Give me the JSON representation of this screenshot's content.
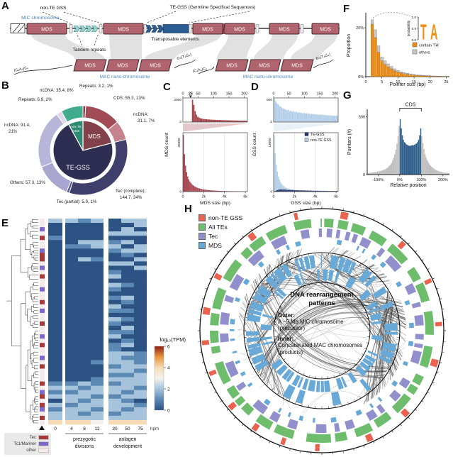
{
  "panels": {
    "A": {
      "letter": "A",
      "mic_label": "MIC chromosome",
      "non_te_label": "non-TE GSS",
      "te_label": "TE-GSS (Germline Specifical Sequences)",
      "tandem_label": "Tandem repeats",
      "transposable_label": "Transposable elements",
      "mac_label": "MAC nano-chromosome",
      "mds_label": "MDS",
      "telomere_left": "(C₄A₄)C₄",
      "telomere_right": "G₄(T₄G₄)",
      "colors": {
        "mds": "#b0646e",
        "mds_border": "#46262c",
        "tandem": "#93d2cd",
        "te": "#2b5f94",
        "funnel": "#dcdcdc",
        "blue_text": "#4a86c0"
      }
    },
    "B": {
      "letter": "B"
    },
    "C": {
      "letter": "C"
    },
    "D": {
      "letter": "D"
    },
    "E": {
      "letter": "E",
      "row_legend": [
        {
          "label": "Tec",
          "color": "#a63a3a"
        },
        {
          "label": "Tc1/Mariner",
          "color": "#7b68c8"
        },
        {
          "label": "other",
          "color": "#f4eaea"
        }
      ],
      "pointer_glyph": "▲"
    },
    "F": {
      "letter": "F"
    },
    "G": {
      "letter": "G"
    },
    "H": {
      "letter": "H",
      "legend": [
        {
          "label": "non-TE GSS",
          "color": "#e96350"
        },
        {
          "label": "All TEs",
          "color": "#6dbd6d"
        },
        {
          "label": "Tec",
          "color": "#928fcd"
        },
        {
          "label": "MDS",
          "color": "#64aad9"
        }
      ],
      "center": {
        "title": "DNA rearrangement patterns",
        "outer_label": "Outer:",
        "outer_desc": "A ~5 Mb MIC chromosome (precursor)",
        "inner_label": "Inner:",
        "inner_desc": "Concatenated MAC chromosomes (products)"
      },
      "inner_color": "#68a9d8"
    }
  },
  "chart_data": [
    {
      "id": "B",
      "type": "pie",
      "title": "MIC genome composition (donut)",
      "inner": [
        {
          "label": "MDS",
          "pct": 21,
          "color": "#83414c"
        },
        {
          "label": "TE-GSS",
          "pct": 71,
          "color": "#2e2d52"
        },
        {
          "label": "non-TE GSS",
          "pct": 8,
          "color": "#2f8a71"
        }
      ],
      "outer": [
        {
          "label": "Repeats: 3.2, 1%",
          "pct": 1,
          "color": "#8f3a44"
        },
        {
          "label": "CDS: 55.3, 13%",
          "pct": 13,
          "color": "#a04b56"
        },
        {
          "label": "ncDNA:|31.1, 7%",
          "pct": 7,
          "color": "#c5848d"
        },
        {
          "label": "Tec (complete):|144.7, 34%",
          "pct": 34,
          "color": "#403f6b"
        },
        {
          "label": "Tec (partial): 5.9, 1%",
          "pct": 1,
          "color": "#5a5890"
        },
        {
          "label": "Others: 57.3, 13%",
          "pct": 13,
          "color": "#a8a6cf"
        },
        {
          "label": "ncDNA: 91.4,|21%",
          "pct": 21,
          "color": "#b7b5d8"
        },
        {
          "label": "Repeats: 6.9, 2%",
          "pct": 2,
          "color": "#dcdbeb"
        },
        {
          "label": "ncDNA: 35.4, 8%",
          "pct": 8,
          "color": "#41ab8e"
        }
      ]
    },
    {
      "id": "C",
      "type": "bar",
      "xlabel": "MDS size (bp)",
      "ylabel": "MDS count",
      "color": "#a6454e",
      "top": {
        "xticks": [
          0,
          25,
          50,
          100,
          150,
          200
        ],
        "xmax": 210,
        "yticks": [
          0,
          2000
        ],
        "ymax": 2100,
        "highlight_tick": 25,
        "values": [
          2,
          3,
          4,
          6,
          8,
          12,
          30,
          1950,
          1500,
          950,
          640,
          470,
          390,
          340,
          300,
          280,
          262,
          250,
          240,
          230,
          222,
          215,
          208,
          202,
          196,
          190,
          185,
          180,
          176,
          172,
          168,
          164,
          160,
          157,
          154,
          151,
          148,
          145,
          142,
          139,
          136,
          133,
          130,
          128,
          126,
          124,
          122,
          120,
          118,
          116
        ]
      },
      "bottom": {
        "xticks": [
          "0",
          "2k",
          "4k",
          "6k"
        ],
        "xtickvals": [
          0,
          2000,
          4000,
          6000
        ],
        "xmax": 6200,
        "yticks": [
          0,
          25000
        ],
        "ymax": 26000,
        "values": [
          25000,
          16500,
          11500,
          8600,
          6700,
          5400,
          4500,
          3800,
          3250,
          2800,
          2450,
          2150,
          1900,
          1700,
          1520,
          1370,
          1240,
          1130,
          1030,
          940,
          865,
          795,
          735,
          680,
          630,
          585,
          545,
          510,
          478,
          448,
          420,
          395,
          372,
          350,
          330,
          312,
          295,
          280,
          266,
          252,
          240,
          228,
          217,
          207,
          197,
          188,
          180,
          172,
          165,
          158,
          151,
          145,
          139,
          134,
          129,
          124,
          119,
          115,
          111,
          107
        ]
      }
    },
    {
      "id": "D",
      "type": "bar",
      "xlabel": "GSS size (bp)",
      "ylabel": "GSS count",
      "color": "#b3cfe8",
      "color2": "#24356e",
      "legend": [
        {
          "label": "TE-GSS",
          "color": "#24356e"
        },
        {
          "label": "non-TE GSS",
          "color": "#b3cfe8"
        }
      ],
      "top": {
        "xticks": [
          0,
          50,
          100,
          150,
          200
        ],
        "xmax": 210,
        "yticks": [
          0,
          600
        ],
        "ymax": 640,
        "values": [
          620,
          560,
          500,
          470,
          430,
          410,
          385,
          360,
          345,
          330,
          310,
          330,
          290,
          305,
          275,
          290,
          260,
          275,
          250,
          262,
          240,
          252,
          232,
          245,
          225,
          238,
          218,
          230,
          212,
          222,
          205,
          215,
          200,
          208,
          195,
          202,
          190,
          196,
          185,
          190,
          180,
          185,
          176,
          180,
          172,
          176,
          168,
          172,
          165,
          168
        ]
      },
      "bottom": {
        "xticks": [
          "0",
          "2k",
          "4k",
          "6k"
        ],
        "xtickvals": [
          0,
          2000,
          4000,
          6000
        ],
        "xmax": 6200,
        "yticks": [
          0,
          13000
        ],
        "ymax": 13600,
        "values": [
          13000,
          8800,
          6200,
          4600,
          3500,
          2750,
          2200,
          1800,
          1500,
          1260,
          1070,
          920,
          800,
          700,
          615,
          545,
          485,
          435,
          392,
          355,
          322,
          294,
          269,
          247,
          228,
          211,
          196,
          182,
          170,
          159,
          149,
          140,
          132,
          124,
          117,
          111,
          105,
          100,
          95,
          90,
          86,
          82,
          78,
          75,
          72,
          69,
          66,
          63,
          61,
          59,
          57,
          55,
          53,
          51,
          49,
          48,
          47,
          46,
          45,
          44
        ],
        "values2": [
          60,
          140,
          230,
          330,
          420,
          470,
          500,
          480,
          450,
          510,
          470,
          430,
          390,
          370,
          410,
          370,
          340,
          390,
          350,
          320,
          300,
          330,
          310,
          290,
          280,
          300,
          270,
          260,
          280,
          250,
          240,
          260,
          230,
          220,
          240,
          210,
          200,
          220,
          195,
          190,
          205,
          185,
          180,
          195,
          175,
          170,
          185,
          165,
          160,
          175,
          155,
          150,
          165,
          145,
          140,
          155,
          135,
          130,
          145,
          125
        ]
      }
    },
    {
      "id": "E",
      "type": "heatmap",
      "columns": [
        "0",
        "4",
        "8",
        "12",
        "30",
        "50",
        "75"
      ],
      "unit": "hpm",
      "groups": [
        {
          "label": "prezygotic divisions"
        },
        {
          "label": "anlagen development"
        }
      ],
      "colorbar": {
        "title": "log₁₀(TPM)",
        "ticks": [
          6,
          4,
          2,
          0
        ]
      },
      "scale": [
        [
          0,
          "#2c5384"
        ],
        [
          1,
          "#5c88b4"
        ],
        [
          2,
          "#a6c3dc"
        ],
        [
          3,
          "#f4f2ee"
        ],
        [
          4,
          "#f7dbb5"
        ],
        [
          5,
          "#e9973e"
        ],
        [
          6,
          "#8f1f15"
        ]
      ],
      "rows": [
        "2212022",
        "0000002",
        "0000020",
        "0000222",
        "1000000",
        "0022120",
        "0112202",
        "0000122",
        "0000010",
        "0021002",
        "0000220",
        "0000002",
        "0000100",
        "0000200",
        "0000000",
        "0000210",
        "0000100",
        "0000000",
        "0000120",
        "0000010",
        "0000200",
        "0000110",
        "0000000",
        "0000210",
        "0000100",
        "0000020",
        "0000110",
        "0000200",
        "0000010",
        "0000120",
        "0000100",
        "0000221",
        "0000211",
        "0001221",
        "0000122",
        "0000221",
        "0000112",
        "0001222",
        "1121122",
        "2212221",
        "1122212",
        "2221122",
        "0212210",
        "2122221",
        "1221212",
        "2212122",
        "2222222",
        "4443444"
      ],
      "row_ann": "OOMOTOOMTTOMOTOOMOOTOMOOTOOMOTOOMOTOOOTOMTOTMOTO"
    },
    {
      "id": "F",
      "type": "bar",
      "xlabel": "Pointer size (bp)",
      "ylabel": "Proportion",
      "xticks": [
        0,
        5,
        10,
        15,
        20,
        25
      ],
      "xmax": 26,
      "x_start": 2,
      "yticks": [
        "0%",
        "20%"
      ],
      "ytickvals": [
        0,
        20
      ],
      "ymax": 25,
      "series": [
        {
          "name": "contain 'TA'",
          "color": "#f28c0f",
          "values": [
            21.5,
            16,
            10,
            6.5,
            5,
            4,
            3.2,
            2.4,
            1.9,
            1.5,
            1.2,
            1.0,
            0.8,
            0.65,
            0.5,
            0.42,
            0.35,
            0.3,
            0.25,
            0.2,
            0.18,
            0.15,
            0.12,
            0.1
          ]
        },
        {
          "name": "others",
          "color": "#c9c9c9",
          "values": [
            1.8,
            3.2,
            2.6,
            1.6,
            1.5,
            1.2,
            1.0,
            0.8,
            0.65,
            0.5,
            0.45,
            0.4,
            0.33,
            0.28,
            0.22,
            0.18,
            0.15,
            0.12,
            0.1,
            0.09,
            0.08,
            0.07,
            0.06,
            0.05
          ]
        }
      ],
      "inset": {
        "ylabel": "probability",
        "yticks": [
          "1.0",
          "0.5",
          "0.0"
        ],
        "logo": "TA",
        "logo_color": "#f28c0f"
      }
    },
    {
      "id": "G",
      "type": "bar",
      "xlabel": "Relative position",
      "ylabel": "Pointers (#)",
      "xticks": [
        "-100%",
        "0%",
        "100%",
        "200%"
      ],
      "xtickvals": [
        -100,
        0,
        100,
        200
      ],
      "xmin": -150,
      "xmax": 230,
      "yticks": [
        0,
        500
      ],
      "ymax": 540,
      "bin_width": 5,
      "region": {
        "label": "CDS",
        "from": 0,
        "to": 100,
        "color": "#2d5e8c"
      },
      "out_color": "#bdbdbd",
      "values": [
        12,
        14,
        15,
        16,
        18,
        19,
        20,
        22,
        24,
        25,
        27,
        30,
        32,
        35,
        38,
        42,
        46,
        52,
        58,
        65,
        75,
        85,
        100,
        120,
        145,
        175,
        215,
        265,
        330,
        420,
        480,
        400,
        340,
        300,
        280,
        270,
        260,
        255,
        250,
        248,
        250,
        255,
        252,
        258,
        262,
        270,
        280,
        300,
        340,
        400,
        330,
        270,
        220,
        180,
        150,
        125,
        105,
        90,
        78,
        68,
        60,
        52,
        46,
        40,
        36,
        32,
        28,
        25,
        22,
        20,
        18,
        16,
        15,
        14,
        13,
        12
      ]
    }
  ]
}
